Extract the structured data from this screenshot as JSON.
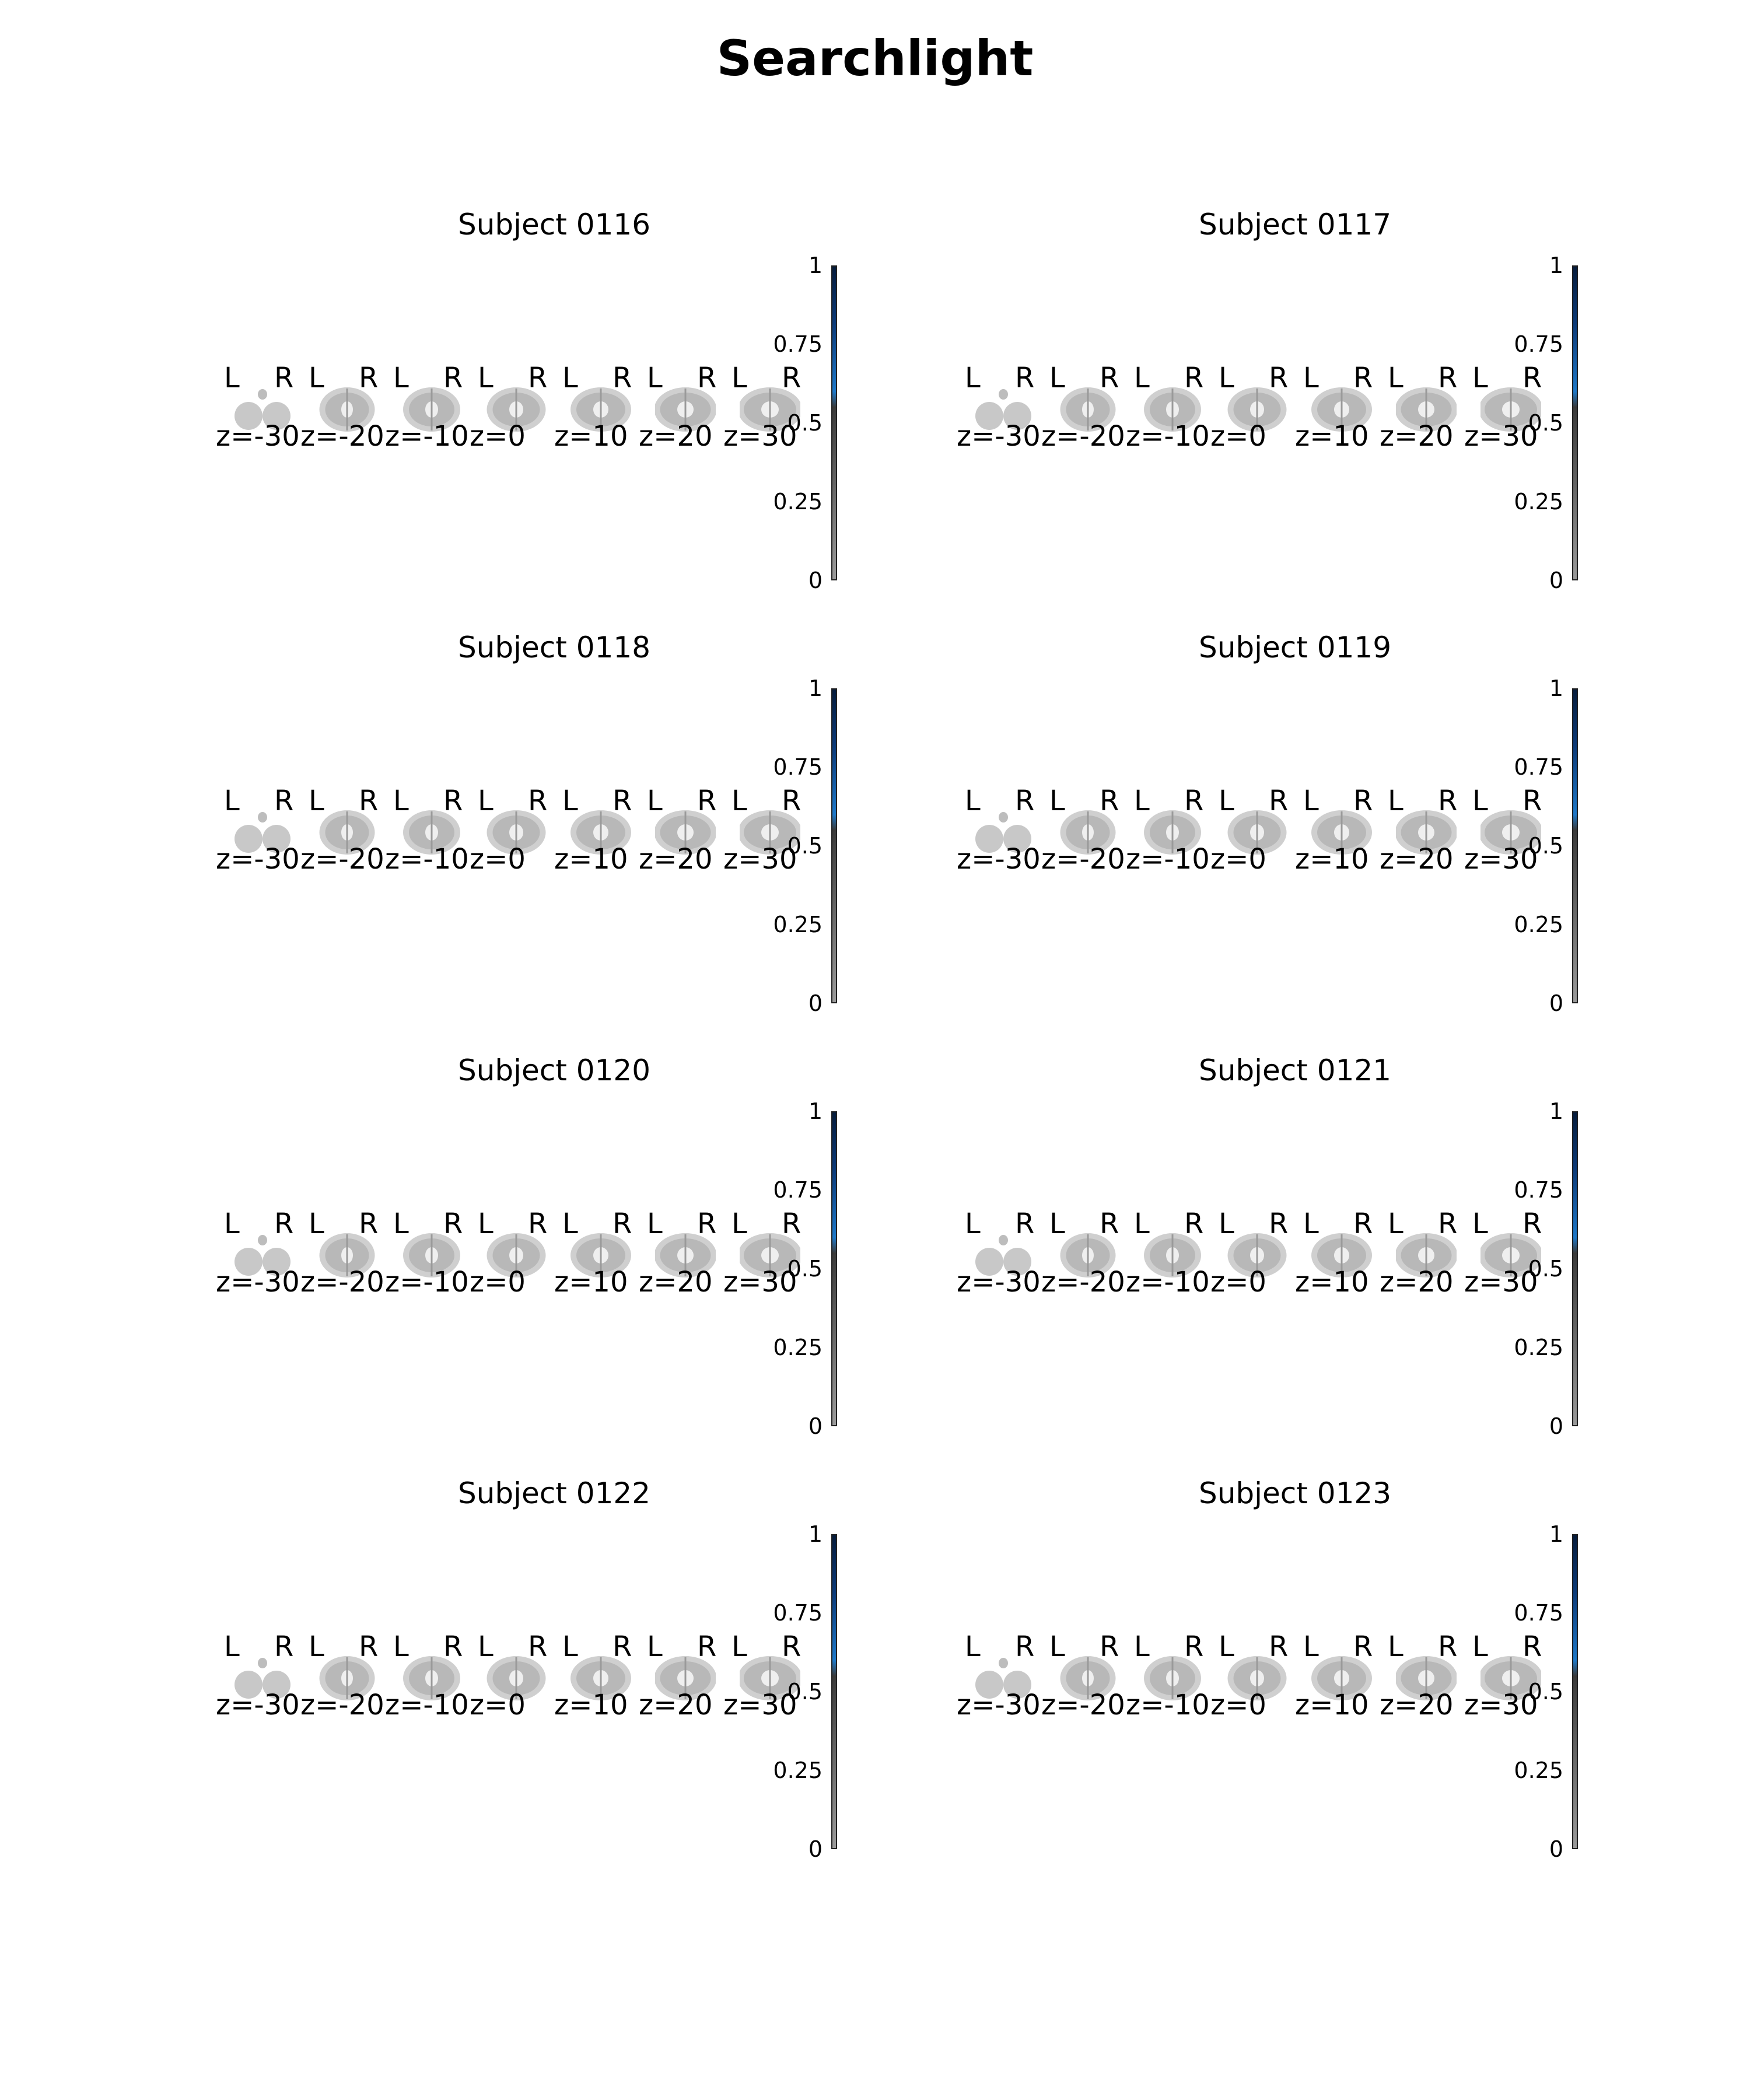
{
  "title": "Searchlight",
  "z_levels": [
    "z=-30",
    "z=-20",
    "z=-10",
    "z=0",
    "z=10",
    "z=20",
    "z=30"
  ],
  "orientation": {
    "left": "L",
    "right": "R"
  },
  "colorbar_ticks": [
    "1",
    "0.75",
    "0.5",
    "0.25",
    "0"
  ],
  "colors": {
    "colorbar_top": "#061c3c",
    "colorbar_mid": "#1e78c8",
    "colorbar_bottom": "#9a9a9a"
  },
  "panels": [
    {
      "title": "Subject 0116"
    },
    {
      "title": "Subject 0117"
    },
    {
      "title": "Subject 0118"
    },
    {
      "title": "Subject 0119"
    },
    {
      "title": "Subject 0120"
    },
    {
      "title": "Subject 0121"
    },
    {
      "title": "Subject 0122"
    },
    {
      "title": "Subject 0123"
    }
  ]
}
